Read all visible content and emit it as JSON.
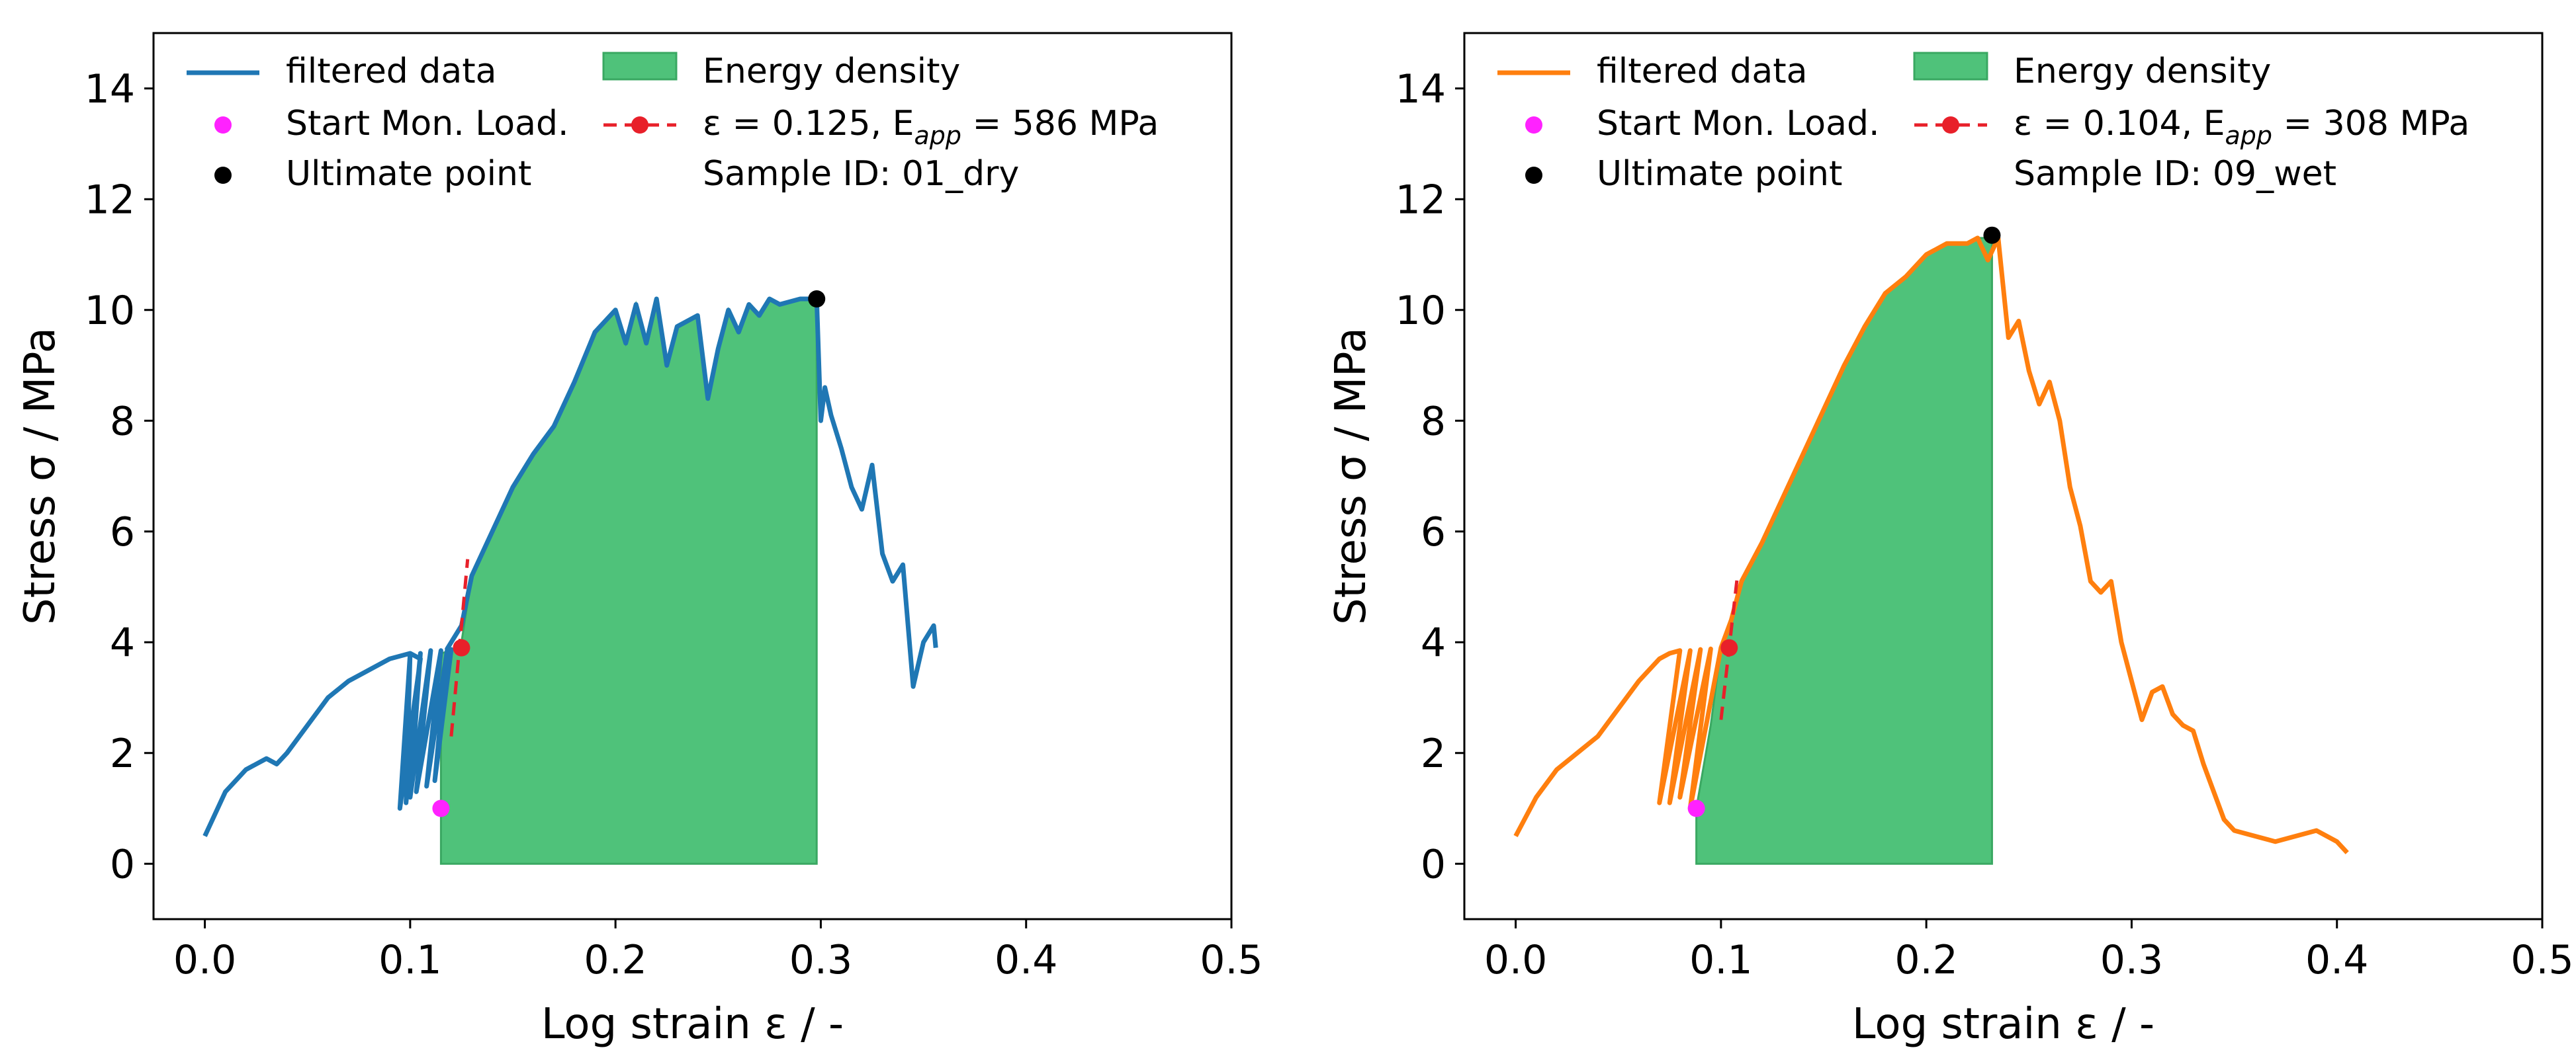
{
  "chart_data": [
    {
      "type": "line",
      "xlabel": "Log strain ε / -",
      "ylabel": "Stress σ / MPa",
      "xlim": [
        -0.025,
        0.5
      ],
      "ylim": [
        -1,
        15
      ],
      "xticks": [
        0.0,
        0.1,
        0.2,
        0.3,
        0.4,
        0.5
      ],
      "xtick_labels": [
        "0.0",
        "0.1",
        "0.2",
        "0.3",
        "0.4",
        "0.5"
      ],
      "yticks": [
        0,
        2,
        4,
        6,
        8,
        10,
        12,
        14
      ],
      "ytick_labels": [
        "0",
        "2",
        "4",
        "6",
        "8",
        "10",
        "12",
        "14"
      ],
      "grid": false,
      "legend": {
        "position": "top",
        "items": [
          {
            "kind": "line",
            "label": "filtered data"
          },
          {
            "kind": "dot-magenta",
            "label": "Start Mon. Load."
          },
          {
            "kind": "dot-black",
            "label": "Ultimate point"
          },
          {
            "kind": "patch",
            "label": "Energy density"
          },
          {
            "kind": "dashed-red",
            "label_prefix": "ε = 0.125,  E",
            "label_sub": "app",
            "label_suffix": " = 586 MPa"
          },
          {
            "kind": "text",
            "label": "Sample ID: 01_dry"
          }
        ]
      },
      "series": [
        {
          "name": "filtered data",
          "color": "#1f77b4",
          "x": [
            0.0,
            0.01,
            0.02,
            0.03,
            0.035,
            0.04,
            0.05,
            0.06,
            0.07,
            0.08,
            0.09,
            0.1,
            0.105,
            0.095,
            0.1,
            0.098,
            0.105,
            0.1,
            0.11,
            0.103,
            0.115,
            0.108,
            0.118,
            0.112,
            0.12,
            0.118,
            0.125,
            0.13,
            0.14,
            0.15,
            0.16,
            0.17,
            0.18,
            0.19,
            0.2,
            0.205,
            0.21,
            0.215,
            0.22,
            0.225,
            0.23,
            0.24,
            0.245,
            0.25,
            0.255,
            0.26,
            0.265,
            0.27,
            0.275,
            0.28,
            0.29,
            0.298,
            0.3,
            0.302,
            0.305,
            0.31,
            0.315,
            0.32,
            0.325,
            0.33,
            0.335,
            0.34,
            0.345,
            0.35,
            0.355,
            0.356
          ],
          "y": [
            0.5,
            1.3,
            1.7,
            1.9,
            1.8,
            2.0,
            2.5,
            3.0,
            3.3,
            3.5,
            3.7,
            3.8,
            3.7,
            1.0,
            3.8,
            1.1,
            3.8,
            1.2,
            3.85,
            1.3,
            3.85,
            1.4,
            3.85,
            1.5,
            3.87,
            3.88,
            4.3,
            5.2,
            6.0,
            6.8,
            7.4,
            7.9,
            8.7,
            9.6,
            10.0,
            9.4,
            10.1,
            9.4,
            10.2,
            9.0,
            9.7,
            9.9,
            8.4,
            9.3,
            10.0,
            9.6,
            10.1,
            9.9,
            10.2,
            10.1,
            10.2,
            10.2,
            8.0,
            8.6,
            8.1,
            7.5,
            6.8,
            6.4,
            7.2,
            5.6,
            5.1,
            5.4,
            3.2,
            4.0,
            4.3,
            3.9
          ]
        },
        {
          "name": "Energy density",
          "type": "area",
          "color": "#4fc27a",
          "x": [
            0.115,
            0.12,
            0.125,
            0.13,
            0.14,
            0.15,
            0.16,
            0.17,
            0.18,
            0.19,
            0.2,
            0.205,
            0.21,
            0.215,
            0.22,
            0.225,
            0.23,
            0.24,
            0.245,
            0.25,
            0.255,
            0.26,
            0.265,
            0.27,
            0.275,
            0.28,
            0.29,
            0.298
          ],
          "y": [
            3.8,
            3.85,
            4.0,
            5.2,
            6.0,
            6.8,
            7.4,
            7.9,
            8.7,
            9.6,
            10.0,
            9.4,
            10.1,
            9.4,
            10.2,
            9.0,
            9.7,
            9.9,
            8.4,
            9.3,
            10.0,
            9.6,
            10.1,
            9.9,
            10.2,
            10.1,
            10.2,
            10.2
          ],
          "baseline": 0
        }
      ],
      "start_mon_load": {
        "x": 0.115,
        "y": 1.0
      },
      "ultimate_point": {
        "x": 0.298,
        "y": 10.2
      },
      "apparent_modulus_line": {
        "x": [
          0.12,
          0.128
        ],
        "y": [
          2.3,
          5.5
        ],
        "point": {
          "x": 0.125,
          "y": 3.9
        }
      }
    },
    {
      "type": "line",
      "xlabel": "Log strain ε / -",
      "ylabel": "Stress σ / MPa",
      "xlim": [
        -0.025,
        0.5
      ],
      "ylim": [
        -1,
        15
      ],
      "xticks": [
        0.0,
        0.1,
        0.2,
        0.3,
        0.4,
        0.5
      ],
      "xtick_labels": [
        "0.0",
        "0.1",
        "0.2",
        "0.3",
        "0.4",
        "0.5"
      ],
      "yticks": [
        0,
        2,
        4,
        6,
        8,
        10,
        12,
        14
      ],
      "ytick_labels": [
        "0",
        "2",
        "4",
        "6",
        "8",
        "10",
        "12",
        "14"
      ],
      "grid": false,
      "legend": {
        "position": "top",
        "items": [
          {
            "kind": "line",
            "label": "filtered data"
          },
          {
            "kind": "dot-magenta",
            "label": "Start Mon. Load."
          },
          {
            "kind": "dot-black",
            "label": "Ultimate point"
          },
          {
            "kind": "patch",
            "label": "Energy density"
          },
          {
            "kind": "dashed-red",
            "label_prefix": "ε = 0.104,  E",
            "label_sub": "app",
            "label_suffix": " = 308 MPa"
          },
          {
            "kind": "text",
            "label": "Sample ID: 09_wet"
          }
        ]
      },
      "series": [
        {
          "name": "filtered data",
          "color": "#ff7f0e",
          "x": [
            0.0,
            0.01,
            0.02,
            0.03,
            0.04,
            0.05,
            0.06,
            0.07,
            0.075,
            0.08,
            0.07,
            0.085,
            0.075,
            0.09,
            0.08,
            0.095,
            0.085,
            0.1,
            0.105,
            0.11,
            0.12,
            0.13,
            0.14,
            0.15,
            0.16,
            0.17,
            0.18,
            0.19,
            0.2,
            0.21,
            0.22,
            0.225,
            0.23,
            0.235,
            0.24,
            0.245,
            0.25,
            0.255,
            0.26,
            0.265,
            0.27,
            0.275,
            0.28,
            0.285,
            0.29,
            0.295,
            0.3,
            0.305,
            0.31,
            0.315,
            0.32,
            0.325,
            0.33,
            0.335,
            0.34,
            0.345,
            0.35,
            0.36,
            0.37,
            0.38,
            0.39,
            0.4,
            0.405
          ],
          "y": [
            0.5,
            1.2,
            1.7,
            2.0,
            2.3,
            2.8,
            3.3,
            3.7,
            3.8,
            3.85,
            1.1,
            3.85,
            1.1,
            3.87,
            1.2,
            3.88,
            1.0,
            3.9,
            4.4,
            5.1,
            5.8,
            6.6,
            7.4,
            8.2,
            9.0,
            9.7,
            10.3,
            10.6,
            11.0,
            11.2,
            11.2,
            11.3,
            10.9,
            11.3,
            9.5,
            9.8,
            8.9,
            8.3,
            8.7,
            8.0,
            6.8,
            6.1,
            5.1,
            4.9,
            5.1,
            4.0,
            3.3,
            2.6,
            3.1,
            3.2,
            2.7,
            2.5,
            2.4,
            1.8,
            1.3,
            0.8,
            0.6,
            0.5,
            0.4,
            0.5,
            0.6,
            0.4,
            0.2
          ]
        },
        {
          "name": "Energy density",
          "type": "area",
          "color": "#4fc27a",
          "x": [
            0.088,
            0.095,
            0.1,
            0.105,
            0.11,
            0.12,
            0.13,
            0.14,
            0.15,
            0.16,
            0.17,
            0.18,
            0.19,
            0.2,
            0.21,
            0.22,
            0.225,
            0.232
          ],
          "y": [
            1.0,
            2.5,
            3.9,
            4.4,
            5.1,
            5.8,
            6.6,
            7.4,
            8.2,
            9.0,
            9.7,
            10.3,
            10.6,
            11.0,
            11.2,
            11.2,
            11.3,
            11.3
          ],
          "baseline": 0
        }
      ],
      "start_mon_load": {
        "x": 0.088,
        "y": 1.0
      },
      "ultimate_point": {
        "x": 0.232,
        "y": 11.35
      },
      "apparent_modulus_line": {
        "x": [
          0.1,
          0.108
        ],
        "y": [
          2.6,
          5.2
        ],
        "point": {
          "x": 0.104,
          "y": 3.9
        }
      }
    }
  ]
}
